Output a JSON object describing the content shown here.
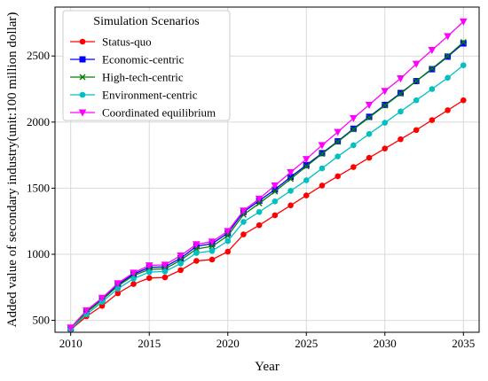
{
  "chart_data": {
    "type": "line",
    "title": "",
    "xlabel": "Year",
    "ylabel": "Added value of secondary industry(unit:100 million dollar)",
    "xlim": [
      2009,
      2036
    ],
    "ylim": [
      410,
      2870
    ],
    "xticks": [
      2010,
      2015,
      2020,
      2025,
      2030,
      2035
    ],
    "yticks": [
      500,
      1000,
      1500,
      2000,
      2500
    ],
    "grid": true,
    "legend": {
      "title": "Simulation Scenarios",
      "position": "top-left"
    },
    "x": [
      2010,
      2011,
      2012,
      2013,
      2014,
      2015,
      2016,
      2017,
      2018,
      2019,
      2020,
      2021,
      2022,
      2023,
      2024,
      2025,
      2026,
      2027,
      2028,
      2029,
      2030,
      2031,
      2032,
      2033,
      2034,
      2035
    ],
    "series": [
      {
        "name": "Status-quo",
        "color": "#ff0000",
        "marker": "circle",
        "values": [
          430,
          530,
          610,
          705,
          775,
          820,
          825,
          880,
          950,
          960,
          1020,
          1150,
          1220,
          1295,
          1370,
          1445,
          1520,
          1590,
          1660,
          1730,
          1800,
          1870,
          1940,
          2015,
          2090,
          2165
        ]
      },
      {
        "name": "Economic-centric",
        "color": "#0000ff",
        "marker": "square",
        "values": [
          440,
          565,
          660,
          770,
          850,
          900,
          905,
          970,
          1060,
          1080,
          1160,
          1320,
          1405,
          1490,
          1585,
          1675,
          1765,
          1855,
          1950,
          2040,
          2130,
          2220,
          2310,
          2400,
          2495,
          2595
        ]
      },
      {
        "name": "High-tech-centric",
        "color": "#008000",
        "marker": "x",
        "values": [
          440,
          560,
          655,
          760,
          840,
          885,
          890,
          955,
          1040,
          1060,
          1140,
          1300,
          1385,
          1475,
          1570,
          1665,
          1760,
          1850,
          1945,
          2035,
          2125,
          2215,
          2310,
          2405,
          2500,
          2605
        ]
      },
      {
        "name": "Environment-centric",
        "color": "#00c0c0",
        "marker": "circle",
        "values": [
          435,
          545,
          640,
          740,
          815,
          865,
          870,
          930,
          1010,
          1025,
          1100,
          1245,
          1320,
          1400,
          1480,
          1560,
          1650,
          1740,
          1825,
          1910,
          1995,
          2080,
          2165,
          2250,
          2335,
          2430
        ]
      },
      {
        "name": "Coordinated equilibrium",
        "color": "#ff00ff",
        "marker": "triangle-down",
        "values": [
          445,
          575,
          670,
          780,
          860,
          915,
          920,
          990,
          1075,
          1095,
          1175,
          1330,
          1420,
          1520,
          1620,
          1720,
          1825,
          1925,
          2030,
          2130,
          2235,
          2330,
          2440,
          2545,
          2650,
          2760
        ]
      }
    ]
  }
}
